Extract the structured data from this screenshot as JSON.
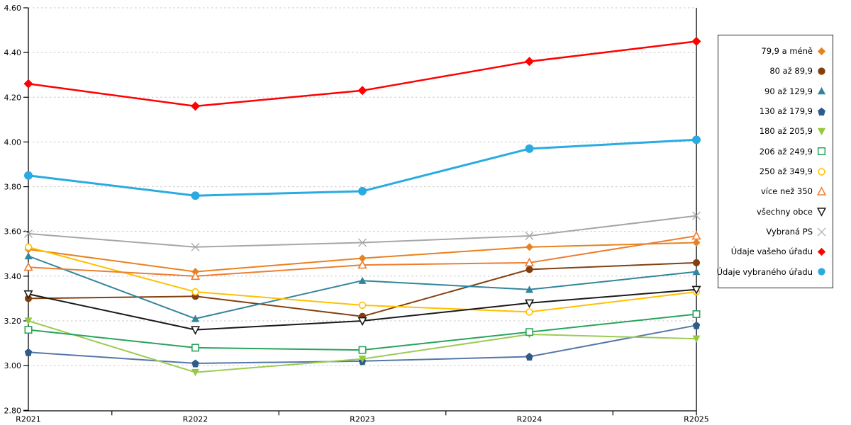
{
  "chart_data": {
    "type": "line",
    "title": "",
    "xlabel": "",
    "ylabel": "",
    "categories": [
      "R2021",
      "R2022",
      "R2023",
      "R2024",
      "R2025"
    ],
    "ylim": [
      2.8,
      4.6
    ],
    "y_tick_labels": [
      "4.60",
      "4.40",
      "4.20",
      "4.00",
      "3.80",
      "3.60",
      "3.40",
      "3.20",
      "3.00",
      "2.80"
    ],
    "y_tick_values": [
      4.6,
      4.4,
      4.2,
      4.0,
      3.8,
      3.6,
      3.4,
      3.2,
      3.0,
      2.8
    ],
    "grid": "horizontal-dashed",
    "grid_color": "#C6C6C6",
    "axis_color": "#000000",
    "legend_position": "right",
    "legend_border_color": "#262626",
    "series": [
      {
        "key": "79-9-a-mene",
        "name": "79,9 a méně",
        "marker": "diamond",
        "color": "#E8821E",
        "line_width": 2,
        "values": [
          3.52,
          3.42,
          3.48,
          3.53,
          3.55
        ]
      },
      {
        "key": "80-az-89-9",
        "name": "80 až 89,9",
        "marker": "circle",
        "color": "#843F0E",
        "line_width": 2,
        "values": [
          3.3,
          3.31,
          3.22,
          3.43,
          3.46
        ]
      },
      {
        "key": "90-az-129-9",
        "name": "90 až 129,9",
        "marker": "triangle",
        "color": "#31859C",
        "line_width": 2,
        "values": [
          3.49,
          3.21,
          3.38,
          3.34,
          3.42
        ]
      },
      {
        "key": "130-az-179-9",
        "name": "130 až 179,9",
        "marker": "pentagon",
        "color": "#2E5B8A",
        "line_color": "#5577A8",
        "line_width": 2,
        "values": [
          3.06,
          3.01,
          3.02,
          3.04,
          3.18
        ]
      },
      {
        "key": "180-az-205-9",
        "name": "180 až 205,9",
        "marker": "triangle-down",
        "color": "#94C83D",
        "line_color": "#9CCB53",
        "line_width": 2,
        "values": [
          3.2,
          2.97,
          3.03,
          3.14,
          3.12
        ]
      },
      {
        "key": "206-az-249-9",
        "name": "206 až 249,9",
        "marker": "square-open",
        "color": "#28A35C",
        "line_width": 2,
        "values": [
          3.16,
          3.08,
          3.07,
          3.15,
          3.23
        ]
      },
      {
        "key": "250-az-349-9",
        "name": "250 až 349,9",
        "marker": "circle-open",
        "color": "#FFC000",
        "line_width": 2,
        "values": [
          3.53,
          3.33,
          3.27,
          3.24,
          3.33
        ]
      },
      {
        "key": "vice-nez-350",
        "name": "více než 350",
        "marker": "triangle-open",
        "color": "#ED7D31",
        "line_width": 2,
        "values": [
          3.44,
          3.4,
          3.45,
          3.46,
          3.58
        ]
      },
      {
        "key": "vsechny-obce",
        "name": "všechny obce",
        "marker": "triangle-down-open",
        "color": "#1A1A1A",
        "line_width": 2,
        "values": [
          3.32,
          3.16,
          3.2,
          3.28,
          3.34
        ]
      },
      {
        "key": "vybrana-ps",
        "name": "Vybraná PS",
        "marker": "x-cross",
        "color": "#A6A6A6",
        "line_width": 2,
        "values": [
          3.59,
          3.53,
          3.55,
          3.58,
          3.67
        ]
      },
      {
        "key": "udaje-vaseho-uradu",
        "name": "Údaje vašeho úřadu",
        "marker": "diamond",
        "color": "#FF0000",
        "line_width": 2.5,
        "marker_size": 6.5,
        "values": [
          4.26,
          4.16,
          4.23,
          4.36,
          4.45
        ]
      },
      {
        "key": "udaje-vybraneho-uradu",
        "name": "Údaje vybraného úřadu",
        "marker": "circle",
        "color": "#29ABE2",
        "line_width": 3,
        "marker_size": 6.5,
        "values": [
          3.85,
          3.76,
          3.78,
          3.97,
          4.01
        ]
      }
    ]
  }
}
